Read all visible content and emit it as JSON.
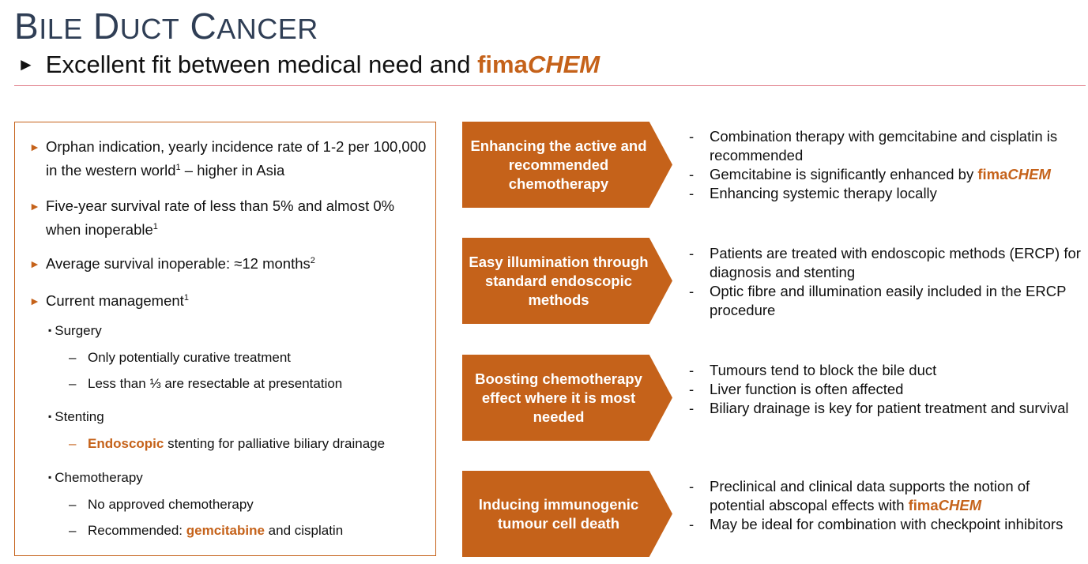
{
  "title": {
    "b": "B",
    "ile": "ILE",
    "d": "D",
    "uct": "UCT",
    "c": "C",
    "ancer": "ANCER"
  },
  "subtitle": {
    "arrow": "►",
    "text": "Excellent fit between medical need and ",
    "brand_a": "fima",
    "brand_b": "CHEM"
  },
  "left": {
    "bullets": [
      {
        "arrow": "►",
        "text": "Orphan indication, yearly incidence rate of 1-2 per 100,000 in the western world",
        "sup": "1",
        "tail": " – higher in Asia"
      },
      {
        "arrow": "►",
        "text": "Five-year survival rate of less than 5% and almost 0% when inoperable",
        "sup": "1",
        "tail": ""
      },
      {
        "arrow": "►",
        "text": "Average survival inoperable: ≈12 months",
        "sup": "2",
        "tail": ""
      },
      {
        "arrow": "►",
        "text": "Current management",
        "sup": "1",
        "tail": ""
      }
    ],
    "square": "▪",
    "dash": "–",
    "surgery": "Surgery",
    "surgery_items": [
      "Only potentially curative treatment",
      "Less than ⅓ are resectable at presentation"
    ],
    "stenting": "Stenting",
    "stenting_hl": "Endoscopic",
    "stenting_rest": " stenting for palliative biliary drainage",
    "chemo": "Chemotherapy",
    "chemo_item1": "No approved chemotherapy",
    "chemo_item2_a": "Recommended: ",
    "chemo_item2_hl": "gemcitabine",
    "chemo_item2_b": " and cisplatin"
  },
  "boxes": [
    "Enhancing the active and recommended chemotherapy",
    "Easy illumination through standard endoscopic methods",
    "Boosting chemotherapy effect where it is most needed",
    "Inducing immunogenic tumour cell death"
  ],
  "right": {
    "dash": "-",
    "g1": [
      "Combination therapy with gemcitabine and cisplatin is recommended",
      "Gemcitabine is significantly enhanced by ",
      "Enhancing systemic therapy locally"
    ],
    "g2": [
      "Patients are treated with endoscopic methods (ERCP) for diagnosis and stenting",
      "Optic fibre and illumination easily included in the ERCP procedure"
    ],
    "g3": [
      "Tumours tend to block the bile duct",
      "Liver function is often affected",
      "Biliary drainage is key for patient treatment and survival"
    ],
    "g4": [
      "Preclinical and clinical data supports the notion of potential abscopal effects with ",
      "May be ideal for combination with checkpoint inhibitors"
    ],
    "brand_a": "fima",
    "brand_b": "CHEM"
  },
  "colors": {
    "accent": "#c5621a",
    "title": "#2f3e55",
    "rule": "#e07a86"
  }
}
